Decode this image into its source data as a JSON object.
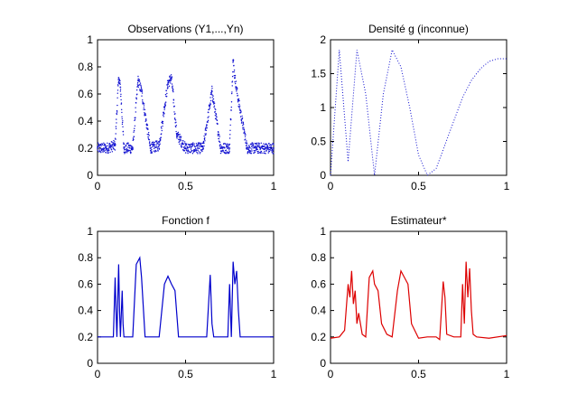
{
  "figure": {
    "background": "#ffffff"
  },
  "chart_data": [
    {
      "type": "scatter",
      "title": "Observations (Y1,...,Yn)",
      "xlabel": "",
      "ylabel": "",
      "xlim": [
        0,
        1
      ],
      "ylim": [
        0,
        1
      ],
      "xticks": [
        "0",
        "0.5",
        "1"
      ],
      "yticks": [
        "0",
        "0.2",
        "0.4",
        "0.6",
        "0.8",
        "1"
      ],
      "grid": false,
      "color": "#1010d0",
      "marker": "dot",
      "n_points": 1024,
      "description_of_shape": "noisy samples of f",
      "series": [
        {
          "x": [
            0.0,
            0.05,
            0.1,
            0.12,
            0.13,
            0.15,
            0.2,
            0.23,
            0.25,
            0.3,
            0.35,
            0.38,
            0.4,
            0.42,
            0.45,
            0.5,
            0.6,
            0.65,
            0.7,
            0.75,
            0.77,
            0.78,
            0.8,
            0.85,
            0.9,
            1.0
          ],
          "y": [
            0.2,
            0.2,
            0.22,
            0.72,
            0.65,
            0.2,
            0.2,
            0.7,
            0.62,
            0.2,
            0.22,
            0.5,
            0.68,
            0.72,
            0.3,
            0.2,
            0.2,
            0.62,
            0.2,
            0.2,
            0.85,
            0.72,
            0.55,
            0.2,
            0.2,
            0.2
          ]
        }
      ]
    },
    {
      "type": "line",
      "title": "Densité g (inconnue)",
      "xlabel": "",
      "ylabel": "",
      "xlim": [
        0,
        1
      ],
      "ylim": [
        0,
        2
      ],
      "xticks": [
        "0",
        "0.5",
        "1"
      ],
      "yticks": [
        "0",
        "0.5",
        "1",
        "1.5",
        "2"
      ],
      "grid": false,
      "color": "#1010d0",
      "linestyle": "dotted",
      "series": [
        {
          "x": [
            0,
            0.05,
            0.1,
            0.15,
            0.2,
            0.25,
            0.3,
            0.35,
            0.4,
            0.45,
            0.5,
            0.55,
            0.6,
            0.65,
            0.7,
            0.75,
            0.8,
            0.85,
            0.9,
            0.95,
            1.0
          ],
          "y": [
            0.0,
            1.85,
            0.2,
            1.85,
            1.2,
            0.0,
            1.2,
            1.85,
            1.6,
            1.0,
            0.3,
            0.0,
            0.1,
            0.45,
            0.8,
            1.15,
            1.4,
            1.57,
            1.68,
            1.72,
            1.72
          ]
        }
      ]
    },
    {
      "type": "line",
      "title": "Fonction f",
      "xlabel": "",
      "ylabel": "",
      "xlim": [
        0,
        1
      ],
      "ylim": [
        0,
        1
      ],
      "xticks": [
        "0",
        "0.5",
        "1"
      ],
      "yticks": [
        "0",
        "0.2",
        "0.4",
        "0.6",
        "0.8",
        "1"
      ],
      "grid": false,
      "color": "#0000cc",
      "linestyle": "solid",
      "series": [
        {
          "x": [
            0.0,
            0.09,
            0.1,
            0.105,
            0.11,
            0.12,
            0.125,
            0.13,
            0.14,
            0.145,
            0.15,
            0.16,
            0.2,
            0.22,
            0.24,
            0.25,
            0.27,
            0.29,
            0.3,
            0.35,
            0.38,
            0.4,
            0.42,
            0.44,
            0.46,
            0.5,
            0.62,
            0.64,
            0.65,
            0.66,
            0.74,
            0.75,
            0.76,
            0.77,
            0.78,
            0.79,
            0.8,
            0.81,
            0.83,
            1.0
          ],
          "y": [
            0.2,
            0.2,
            0.65,
            0.4,
            0.2,
            0.75,
            0.4,
            0.2,
            0.55,
            0.3,
            0.2,
            0.2,
            0.2,
            0.75,
            0.8,
            0.65,
            0.2,
            0.2,
            0.2,
            0.2,
            0.6,
            0.66,
            0.6,
            0.55,
            0.2,
            0.2,
            0.2,
            0.67,
            0.3,
            0.2,
            0.2,
            0.6,
            0.2,
            0.77,
            0.6,
            0.7,
            0.4,
            0.2,
            0.2,
            0.2
          ]
        }
      ]
    },
    {
      "type": "line",
      "title": "Estimateur*",
      "xlabel": "",
      "ylabel": "",
      "xlim": [
        0,
        1
      ],
      "ylim": [
        0,
        1
      ],
      "xticks": [
        "0",
        "0.5",
        "1"
      ],
      "yticks": [
        "0",
        "0.2",
        "0.4",
        "0.6",
        "0.8",
        "1"
      ],
      "grid": false,
      "color": "#dd0000",
      "linestyle": "solid",
      "series": [
        {
          "x": [
            0.0,
            0.05,
            0.08,
            0.1,
            0.11,
            0.12,
            0.13,
            0.14,
            0.15,
            0.16,
            0.18,
            0.2,
            0.22,
            0.24,
            0.25,
            0.27,
            0.29,
            0.32,
            0.35,
            0.38,
            0.4,
            0.42,
            0.44,
            0.46,
            0.5,
            0.55,
            0.6,
            0.62,
            0.64,
            0.65,
            0.66,
            0.7,
            0.74,
            0.75,
            0.76,
            0.77,
            0.78,
            0.79,
            0.8,
            0.81,
            0.83,
            0.9,
            1.0
          ],
          "y": [
            0.19,
            0.2,
            0.25,
            0.6,
            0.5,
            0.7,
            0.45,
            0.55,
            0.3,
            0.38,
            0.22,
            0.2,
            0.65,
            0.7,
            0.6,
            0.55,
            0.3,
            0.22,
            0.2,
            0.55,
            0.7,
            0.65,
            0.6,
            0.3,
            0.19,
            0.2,
            0.2,
            0.18,
            0.62,
            0.5,
            0.22,
            0.2,
            0.2,
            0.6,
            0.3,
            0.77,
            0.5,
            0.72,
            0.4,
            0.22,
            0.2,
            0.19,
            0.21
          ]
        }
      ]
    }
  ]
}
